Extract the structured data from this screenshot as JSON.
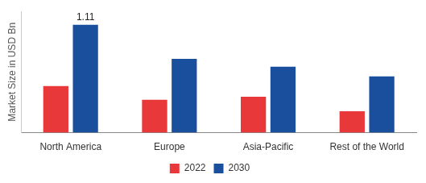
{
  "chart_data": {
    "type": "bar",
    "y_label": "Market Size in USD Bn",
    "categories": [
      "North America",
      "Europe",
      "Asia-Pacific",
      "Rest of the World"
    ],
    "series": [
      {
        "name": "2022",
        "color": "#e8383a",
        "values": [
          0.48,
          0.34,
          0.37,
          0.22
        ]
      },
      {
        "name": "2030",
        "color": "#1a4f9e",
        "values": [
          1.11,
          0.76,
          0.68,
          0.58
        ],
        "value_labels": [
          "1.11",
          null,
          null,
          null
        ]
      }
    ],
    "ylim": [
      0,
      1.25
    ],
    "grid": false,
    "legend": "bottom",
    "tick_labels": "x"
  }
}
